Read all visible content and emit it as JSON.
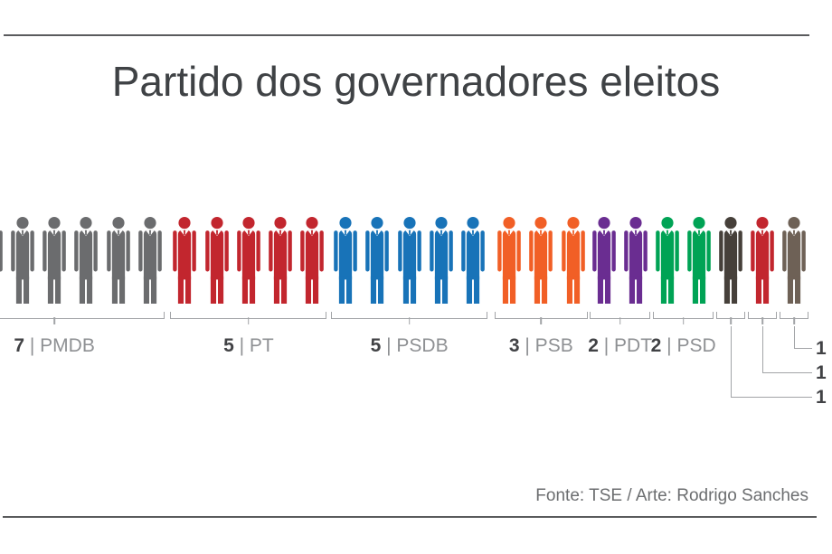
{
  "title": "Partido dos governadores eleitos",
  "footer": {
    "credit": "Fonte: TSE / Arte: Rodrigo Sanches"
  },
  "chart_data": {
    "type": "pictograph",
    "title": "Partido dos governadores eleitos",
    "unit_icon": "person-icon",
    "categories": [
      "PMDB",
      "PT",
      "PSDB",
      "PSB",
      "PDT",
      "PSD",
      "",
      "",
      ""
    ],
    "values": [
      7,
      5,
      5,
      3,
      2,
      2,
      1,
      1,
      1
    ],
    "source": "Fonte: TSE / Arte: Rodrigo Sanches",
    "legend_position": "below-groups",
    "groups": [
      {
        "party": "PMDB",
        "count": 7,
        "color": "#6b6c6e",
        "num_label": "7",
        "party_label": " | PMDB",
        "label_style": "below"
      },
      {
        "party": "PT",
        "count": 5,
        "color": "#c2262e",
        "num_label": "5",
        "party_label": " | PT",
        "label_style": "below"
      },
      {
        "party": "PSDB",
        "count": 5,
        "color": "#1873b8",
        "num_label": "5",
        "party_label": " | PSDB",
        "label_style": "below"
      },
      {
        "party": "PSB",
        "count": 3,
        "color": "#f15f26",
        "num_label": "3",
        "party_label": " | PSB",
        "label_style": "below"
      },
      {
        "party": "PDT",
        "count": 2,
        "color": "#6a2d91",
        "num_label": "2",
        "party_label": " | PDT",
        "label_style": "below"
      },
      {
        "party": "PSD",
        "count": 2,
        "color": "#00a355",
        "num_label": "2",
        "party_label": " | PSD",
        "label_style": "below"
      },
      {
        "party": "",
        "count": 1,
        "color": "#46403a",
        "num_label": "1",
        "party_label": "",
        "label_style": "callout"
      },
      {
        "party": "",
        "count": 1,
        "color": "#c2262e",
        "num_label": "1",
        "party_label": "",
        "label_style": "callout"
      },
      {
        "party": "",
        "count": 1,
        "color": "#6e6156",
        "num_label": "1",
        "party_label": "",
        "label_style": "callout"
      }
    ]
  }
}
